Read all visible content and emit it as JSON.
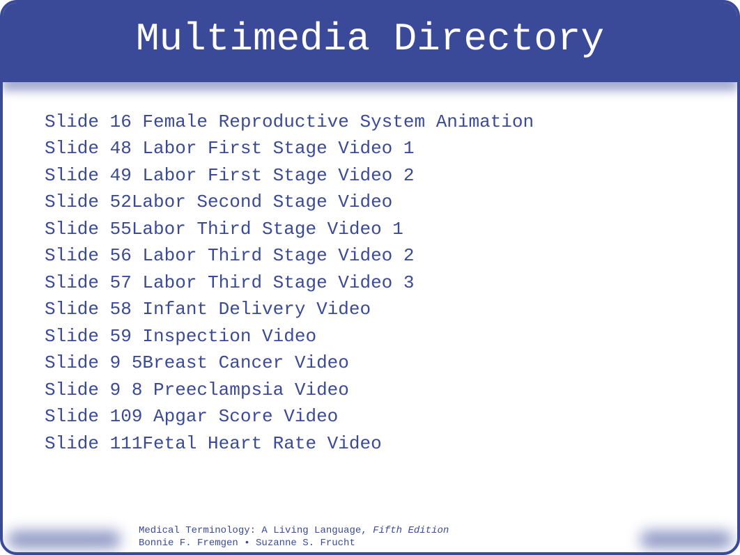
{
  "title": "Multimedia Directory",
  "slides": [
    {
      "text": "Slide 16 Female Reproductive System Animation"
    },
    {
      "text": "Slide 48 Labor First Stage Video 1"
    },
    {
      "text": "Slide 49 Labor First Stage Video 2"
    },
    {
      "text": "Slide 52Labor Second Stage Video"
    },
    {
      "text": "Slide 55Labor Third Stage Video 1"
    },
    {
      "text": "Slide 56 Labor Third Stage Video 2"
    },
    {
      "text": "Slide 57 Labor Third Stage Video 3"
    },
    {
      "text": "Slide 58 Infant Delivery Video"
    },
    {
      "text": "Slide 59 Inspection Video"
    },
    {
      "text": "Slide 9 5Breast Cancer Video"
    },
    {
      "text": "Slide 9 8 Preeclampsia Video"
    },
    {
      "text": "Slide 109 Apgar Score Video"
    },
    {
      "text": "Slide 111Fetal Heart Rate Video"
    }
  ],
  "footer": {
    "line1_normal": "Medical Terminology: A Living Language, ",
    "line1_italic": "Fifth Edition",
    "line2": "Bonnie F. Fremgen • Suzanne S. Frucht"
  },
  "colors": {
    "primary": "#3a4a99",
    "background": "#ffffff",
    "title_text": "#ffffff"
  },
  "typography": {
    "title_fontsize": 56,
    "body_fontsize": 26,
    "footer_fontsize": 14,
    "font_family": "Courier New, monospace"
  }
}
